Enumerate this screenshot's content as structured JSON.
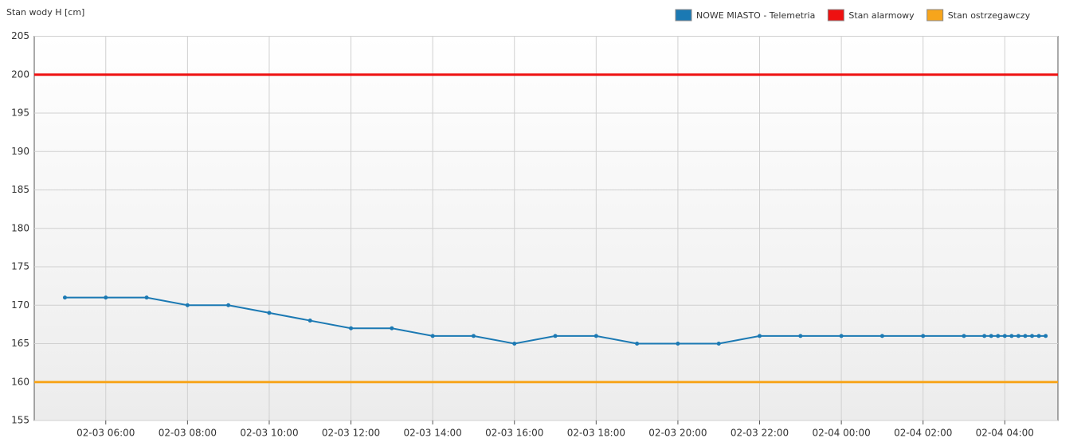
{
  "chart_data": {
    "type": "line",
    "ylabel": "Stan wody H [cm]",
    "x": [
      "02-03 05:00",
      "02-03 06:00",
      "02-03 07:00",
      "02-03 08:00",
      "02-03 09:00",
      "02-03 10:00",
      "02-03 11:00",
      "02-03 12:00",
      "02-03 13:00",
      "02-03 14:00",
      "02-03 15:00",
      "02-03 16:00",
      "02-03 17:00",
      "02-03 18:00",
      "02-03 19:00",
      "02-03 20:00",
      "02-03 21:00",
      "02-03 22:00",
      "02-03 23:00",
      "02-04 00:00",
      "02-04 01:00",
      "02-04 02:00",
      "02-04 03:00",
      "02-04 03:30",
      "02-04 03:40",
      "02-04 03:50",
      "02-04 04:00",
      "02-04 04:10",
      "02-04 04:20",
      "02-04 04:30",
      "02-04 04:40",
      "02-04 04:50",
      "02-04 05:00"
    ],
    "series": [
      {
        "name": "NOWE MIASTO - Telemetria",
        "color": "#1b79b3",
        "values": [
          171,
          171,
          171,
          170,
          170,
          169,
          168,
          167,
          167,
          166,
          166,
          165,
          166,
          166,
          165,
          165,
          165,
          166,
          166,
          166,
          166,
          166,
          166,
          166,
          166,
          166,
          166,
          166,
          166,
          166,
          166,
          166,
          166
        ]
      }
    ],
    "thresholds": [
      {
        "name": "Stan alarmowy",
        "color": "#ee1111",
        "value": 200
      },
      {
        "name": "Stan ostrzegawczy",
        "color": "#f7a51c",
        "value": 160
      }
    ],
    "xlim": [
      "02-03 04:15",
      "02-04 05:18"
    ],
    "xticks": [
      "02-03 06:00",
      "02-03 08:00",
      "02-03 10:00",
      "02-03 12:00",
      "02-03 14:00",
      "02-03 16:00",
      "02-03 18:00",
      "02-03 20:00",
      "02-03 22:00",
      "02-04 00:00",
      "02-04 02:00",
      "02-04 04:00"
    ],
    "ylim": [
      155,
      205
    ],
    "yticks": [
      155,
      160,
      165,
      170,
      175,
      180,
      185,
      190,
      195,
      200,
      205
    ],
    "grid": true
  }
}
